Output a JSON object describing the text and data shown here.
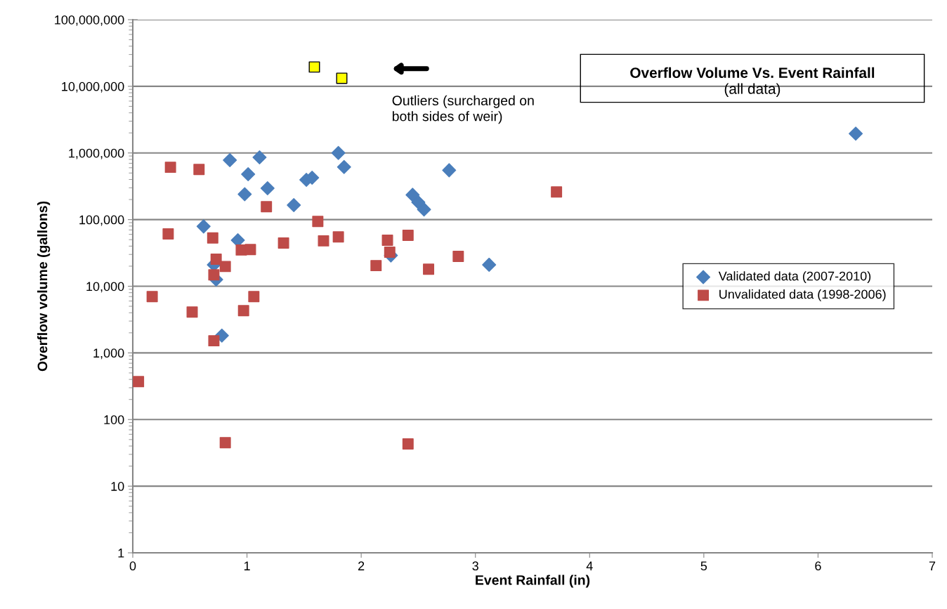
{
  "chart_data": {
    "type": "scatter",
    "title": "Overflow Volume Vs. Event Rainfall",
    "subtitle": "(all data)",
    "xlabel": "Event Rainfall (in)",
    "ylabel": "Overflow volume (gallons)",
    "log": "y",
    "grid": "y",
    "legend": "right",
    "xlim": [
      0,
      7
    ],
    "xticks": [
      0,
      1,
      2,
      3,
      4,
      5,
      6,
      7
    ],
    "ylim": [
      1,
      100000000
    ],
    "yticks": [
      1,
      10,
      100,
      {
        "value": 1000,
        "label": "1,000"
      },
      {
        "value": 10000,
        "label": "10,000"
      },
      {
        "value": 100000,
        "label": "100,000"
      },
      {
        "value": 1000000,
        "label": "1,000,000"
      },
      {
        "value": 10000000,
        "label": "10,000,000"
      },
      {
        "value": 100000000,
        "label": "100,000,000"
      }
    ],
    "annotations": [
      "Outliers (surcharged on both sides of weir)"
    ],
    "series": [
      {
        "name": "Validated data (2007-2010)",
        "color": "#4a7ebb",
        "marker": "diamond",
        "x": [
          0.85,
          1.11,
          1.01,
          0.98,
          1.18,
          1.52,
          1.57,
          1.41,
          1.8,
          1.85,
          0.62,
          0.92,
          0.71,
          0.73,
          0.78,
          2.77,
          2.45,
          2.5,
          2.55,
          2.26,
          3.12,
          6.33
        ],
        "values": [
          780000,
          860000,
          480000,
          240000,
          295000,
          395000,
          425000,
          165000,
          1000000,
          615000,
          79000,
          49000,
          21000,
          12600,
          1820,
          550000,
          235000,
          182000,
          142000,
          29000,
          21000,
          1950000
        ]
      },
      {
        "name": "Unvalidated data (1998-2006)",
        "color": "#be4b48",
        "marker": "square",
        "x": [
          0.33,
          0.58,
          1.17,
          1.62,
          0.31,
          0.7,
          0.95,
          1.03,
          1.32,
          1.67,
          1.8,
          2.23,
          2.25,
          2.41,
          2.13,
          2.59,
          2.85,
          0.73,
          0.81,
          0.71,
          0.17,
          1.06,
          0.52,
          0.97,
          0.71,
          0.05,
          0.81,
          2.41,
          3.71
        ],
        "values": [
          610000,
          565000,
          156000,
          94000,
          61000,
          53000,
          35000,
          35500,
          44500,
          48000,
          55000,
          49000,
          32500,
          58000,
          20400,
          18000,
          28000,
          25500,
          19800,
          14800,
          7000,
          7000,
          4100,
          4300,
          1520,
          370,
          45,
          43,
          260000
        ]
      },
      {
        "color": "#ffff00",
        "marker": "square",
        "x": [
          1.59,
          1.83
        ],
        "values": [
          19500000,
          13200000
        ]
      }
    ]
  }
}
